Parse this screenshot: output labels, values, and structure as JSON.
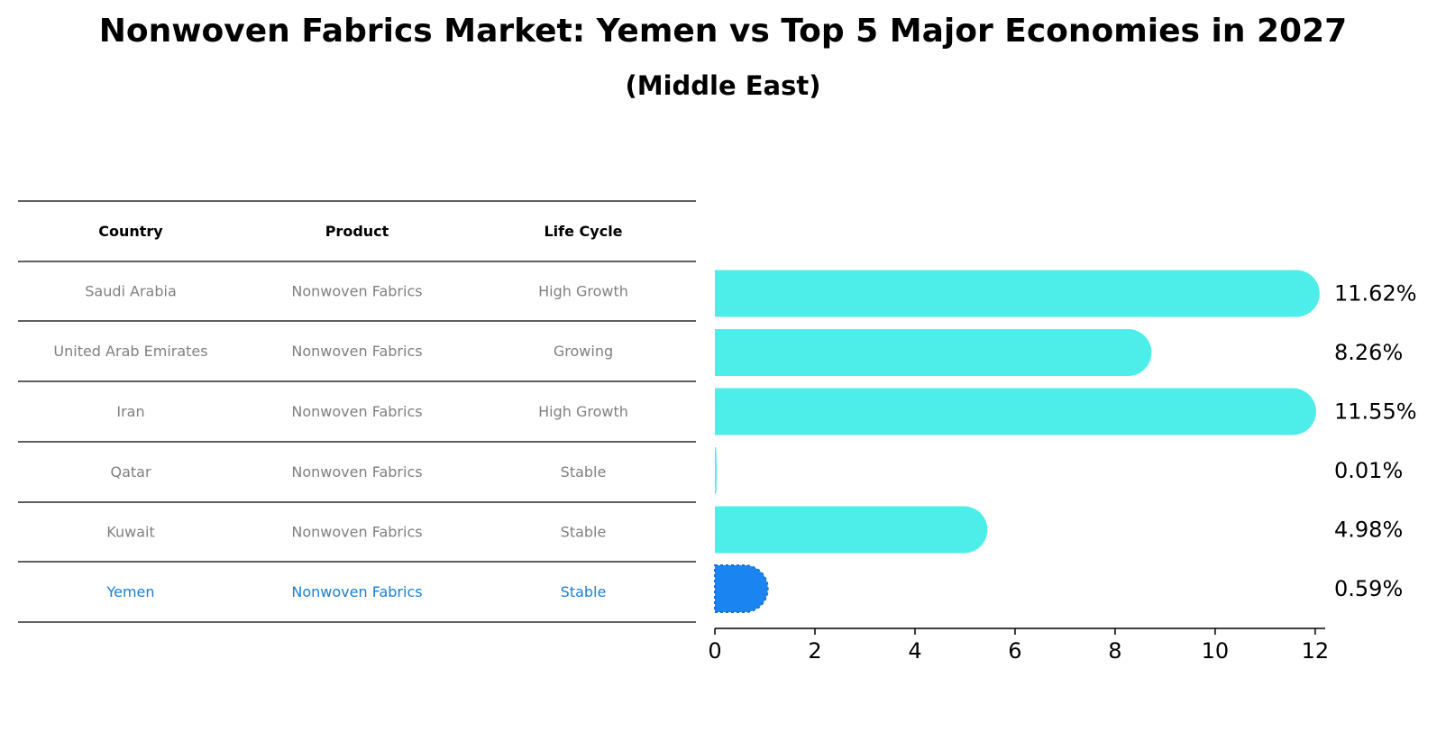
{
  "title": "Nonwoven Fabrics Market: Yemen vs Top 5 Major Economies in 2027",
  "subtitle": "(Middle East)",
  "table": {
    "headers": [
      "Country",
      "Product",
      "Life Cycle"
    ],
    "rows": [
      [
        "Saudi Arabia",
        "Nonwoven Fabrics",
        "High Growth"
      ],
      [
        "United Arab Emirates",
        "Nonwoven Fabrics",
        "Growing"
      ],
      [
        "Iran",
        "Nonwoven Fabrics",
        "High Growth"
      ],
      [
        "Qatar",
        "Nonwoven Fabrics",
        "Stable"
      ],
      [
        "Kuwait",
        "Nonwoven Fabrics",
        "Stable"
      ],
      [
        "Yemen",
        "Nonwoven Fabrics",
        "Stable"
      ]
    ],
    "highlight_row": 5,
    "colors": {
      "text": "#808080",
      "highlight": "#1a7fd4",
      "header": "#000000",
      "rule": "#000000"
    }
  },
  "chart_data": {
    "type": "bar",
    "orientation": "horizontal",
    "categories": [
      "Saudi Arabia",
      "United Arab Emirates",
      "Iran",
      "Qatar",
      "Kuwait",
      "Yemen"
    ],
    "values": [
      11.62,
      8.26,
      11.55,
      0.01,
      4.98,
      0.59
    ],
    "value_labels": [
      "11.62%",
      "8.26%",
      "11.55%",
      "0.01%",
      "4.98%",
      "0.59%"
    ],
    "xlim": [
      0,
      12.2
    ],
    "xticks": [
      0,
      2,
      4,
      6,
      8,
      10,
      12
    ],
    "grid": false,
    "colors": {
      "default": "#4deeea",
      "highlight": "#1a85f0"
    },
    "highlight_index": 5
  }
}
